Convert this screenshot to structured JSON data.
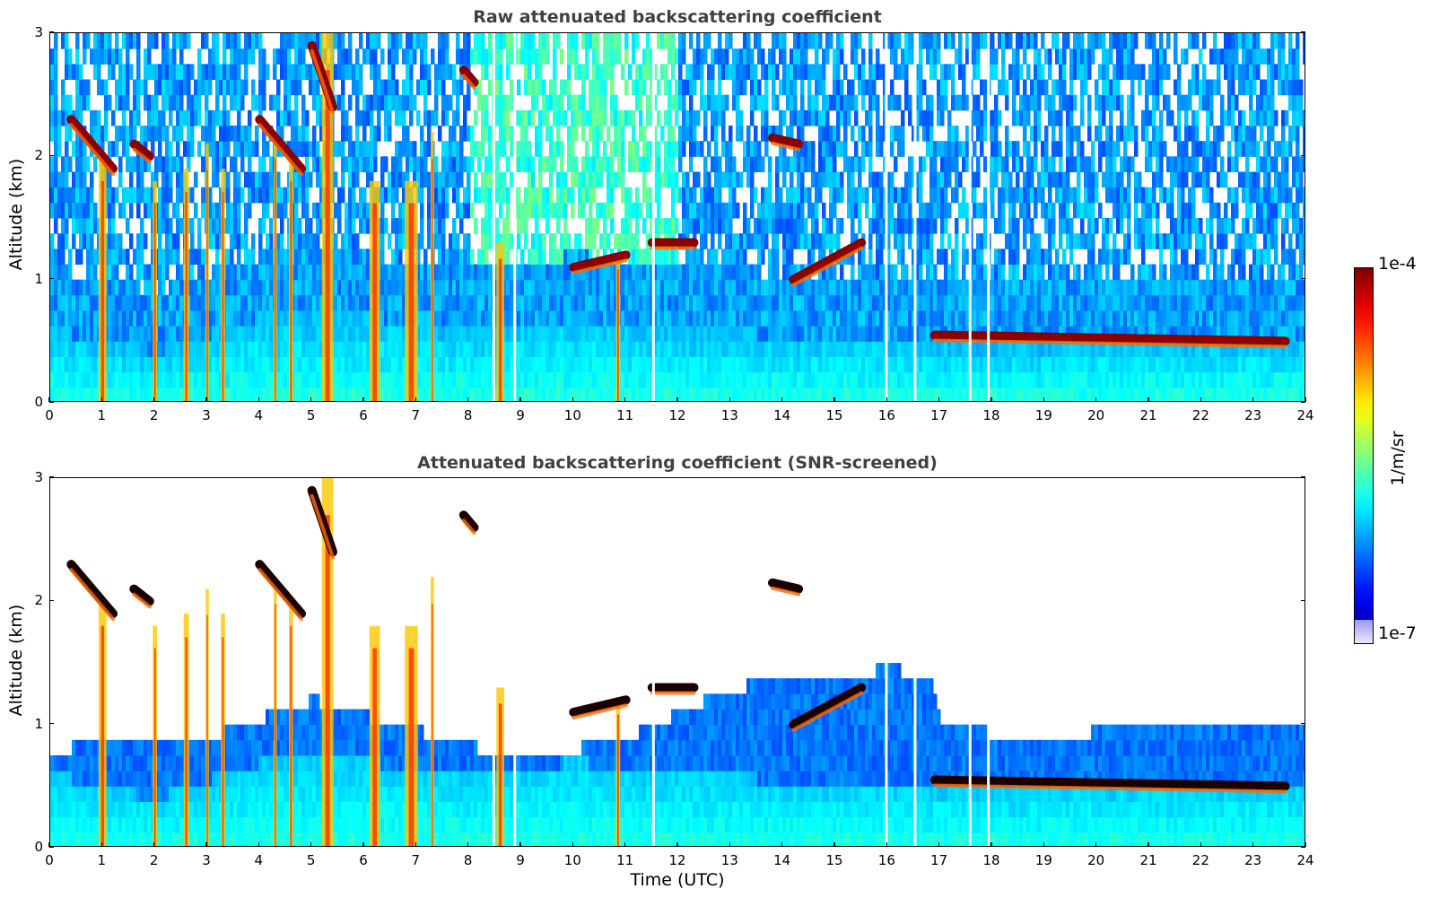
{
  "chart_data": [
    {
      "type": "heatmap",
      "title": "Raw attenuated backscattering coefficient",
      "xlabel": "",
      "ylabel": "Altitude (km)",
      "xlim": [
        0,
        24
      ],
      "ylim": [
        0,
        3
      ],
      "xticks": [
        "0",
        "1",
        "2",
        "3",
        "4",
        "5",
        "6",
        "7",
        "8",
        "9",
        "10",
        "11",
        "12",
        "13",
        "14",
        "15",
        "16",
        "17",
        "18",
        "19",
        "20",
        "21",
        "22",
        "23",
        "24"
      ],
      "yticks": [
        "0",
        "1",
        "2",
        "3"
      ],
      "colormap": "jet",
      "features": {
        "boundary_layer_top_km": [
          [
            0,
            0.6
          ],
          [
            2,
            0.4
          ],
          [
            4,
            0.7
          ],
          [
            6,
            0.7
          ],
          [
            8,
            0.6
          ],
          [
            10,
            0.7
          ],
          [
            12,
            0.6
          ],
          [
            14,
            0.55
          ],
          [
            16,
            0.5
          ],
          [
            18,
            0.45
          ],
          [
            20,
            0.5
          ],
          [
            22,
            0.5
          ],
          [
            24,
            0.5
          ]
        ],
        "cloud_layers": [
          {
            "x": [
              0.4,
              1.2
            ],
            "y": [
              2.3,
              1.9
            ]
          },
          {
            "x": [
              1.6,
              1.9
            ],
            "y": [
              2.1,
              2.0
            ]
          },
          {
            "x": [
              4.0,
              4.8
            ],
            "y": [
              2.3,
              1.9
            ]
          },
          {
            "x": [
              5.0,
              5.4
            ],
            "y": [
              2.9,
              2.4
            ]
          },
          {
            "x": [
              7.9,
              8.1
            ],
            "y": [
              2.7,
              2.6
            ]
          },
          {
            "x": [
              10.0,
              11.0
            ],
            "y": [
              1.1,
              1.2
            ]
          },
          {
            "x": [
              11.5,
              12.3
            ],
            "y": [
              1.3,
              1.3
            ]
          },
          {
            "x": [
              13.8,
              14.3
            ],
            "y": [
              2.15,
              2.1
            ]
          },
          {
            "x": [
              14.2,
              15.5
            ],
            "y": [
              1.0,
              1.3
            ]
          },
          {
            "x": [
              16.9,
              23.6
            ],
            "y": [
              0.55,
              0.5
            ]
          }
        ],
        "missing_data_times": [
          8.45,
          8.85,
          11.5,
          15.95,
          16.5,
          17.55,
          17.9
        ]
      }
    },
    {
      "type": "heatmap",
      "title": "Attenuated backscattering coefficient (SNR-screened)",
      "xlabel": "Time (UTC)",
      "ylabel": "Altitude (km)",
      "xlim": [
        0,
        24
      ],
      "ylim": [
        0,
        3
      ],
      "xticks": [
        "0",
        "1",
        "2",
        "3",
        "4",
        "5",
        "6",
        "7",
        "8",
        "9",
        "10",
        "11",
        "12",
        "13",
        "14",
        "15",
        "16",
        "17",
        "18",
        "19",
        "20",
        "21",
        "22",
        "23",
        "24"
      ],
      "yticks": [
        "0",
        "1",
        "2",
        "3"
      ],
      "colormap": "jet",
      "features": {
        "screened_top_km": [
          [
            0,
            0.8
          ],
          [
            3,
            0.9
          ],
          [
            5,
            1.2
          ],
          [
            9,
            0.7
          ],
          [
            11,
            0.9
          ],
          [
            13,
            1.3
          ],
          [
            16,
            1.45
          ],
          [
            16.8,
            1.4
          ],
          [
            17,
            1.0
          ],
          [
            19,
            0.85
          ],
          [
            21,
            1.05
          ],
          [
            24,
            1.0
          ]
        ]
      }
    }
  ],
  "colorbar": {
    "label": "1/m/sr",
    "max_label": "1e-4",
    "min_label": "1e-7",
    "scale": "log"
  }
}
